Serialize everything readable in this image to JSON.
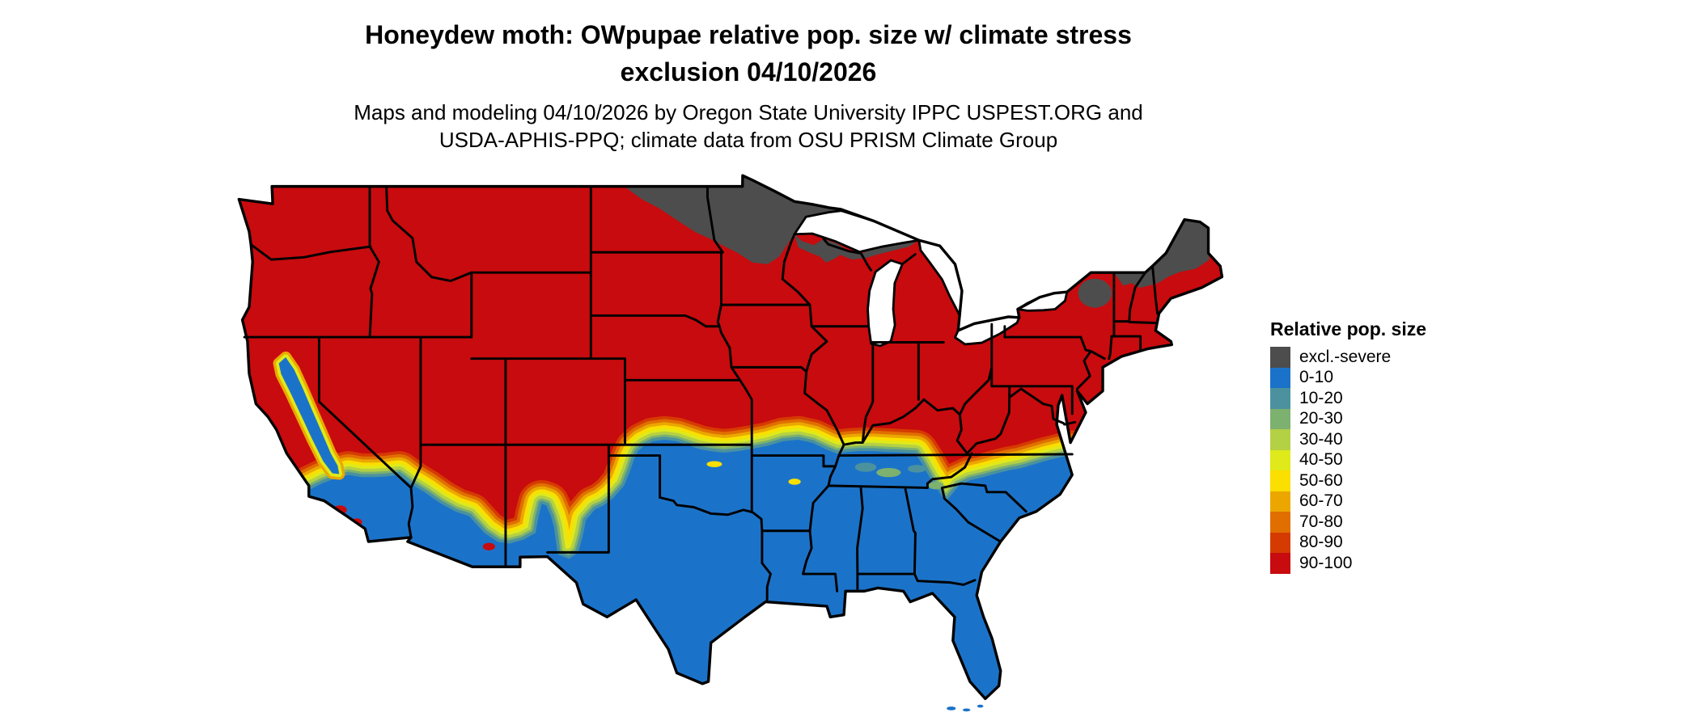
{
  "header": {
    "title_line1": "Honeydew moth: OWpupae relative pop. size w/ climate stress",
    "title_line2": "exclusion 04/10/2026",
    "subtitle_line1": "Maps and modeling 04/10/2026 by Oregon State University IPPC USPEST.ORG and",
    "subtitle_line2": "USDA-APHIS-PPQ; climate data from OSU PRISM Climate Group"
  },
  "legend": {
    "title": "Relative pop. size",
    "items": [
      {
        "label": "excl.-severe",
        "color": "#4d4d4d"
      },
      {
        "label": "0-10",
        "color": "#1b73c9"
      },
      {
        "label": "10-20",
        "color": "#4b929e"
      },
      {
        "label": "20-30",
        "color": "#7cb16f"
      },
      {
        "label": "30-40",
        "color": "#b4d044"
      },
      {
        "label": "40-50",
        "color": "#e0e919"
      },
      {
        "label": "50-60",
        "color": "#fadf00"
      },
      {
        "label": "60-70",
        "color": "#eba700"
      },
      {
        "label": "70-80",
        "color": "#e06f00"
      },
      {
        "label": "80-90",
        "color": "#d53b00"
      },
      {
        "label": "90-100",
        "color": "#c80b0e"
      }
    ]
  },
  "map": {
    "type": "choropleth",
    "area": "Conterminous United States with state borders",
    "water_color": "#ffffff",
    "border_color": "#000000",
    "region_values": {
      "northern_and_central_us": "90-100",
      "southern_us_and_california_valley": "0-10",
      "northern_minnesota_north_dakota_wisconsin": "excl.-severe",
      "northern_new_england_and_adirondacks": "excl.-severe",
      "transition_band_along_36N_to_38N": "10-90 gradient",
      "appalachian_tongue_east_tennessee_west_nc_north_ga": "90-100"
    }
  }
}
